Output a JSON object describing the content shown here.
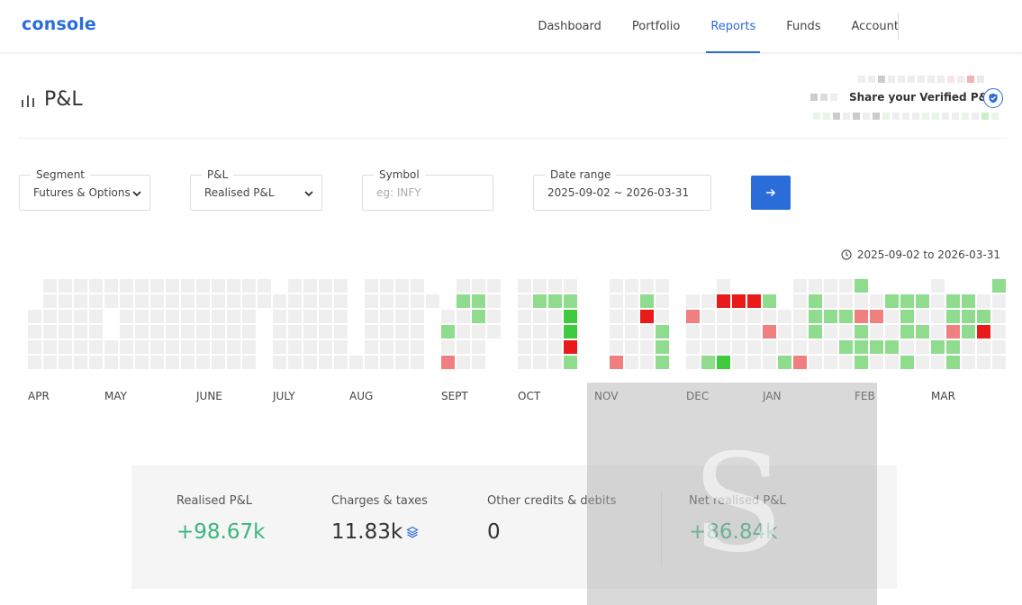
{
  "app": {
    "logo": "console"
  },
  "nav": {
    "items": [
      {
        "label": "Dashboard",
        "active": false
      },
      {
        "label": "Portfolio",
        "active": false
      },
      {
        "label": "Reports",
        "active": true
      },
      {
        "label": "Funds",
        "active": false
      },
      {
        "label": "Account",
        "active": false
      }
    ]
  },
  "page": {
    "title": "P&L",
    "title_icon": "bar-chart-icon"
  },
  "share": {
    "label": "Share your Verified P&L",
    "icon": "verified-shield-icon"
  },
  "filters": {
    "segment": {
      "label": "Segment",
      "value": "Futures & Options"
    },
    "pnl": {
      "label": "P&L",
      "value": "Realised P&L"
    },
    "symbol": {
      "label": "Symbol",
      "placeholder": "eg: INFY",
      "value": ""
    },
    "date_range": {
      "label": "Date range",
      "value": "2025-09-02 ~ 2026-03-31"
    },
    "submit_icon": "arrow-right-icon"
  },
  "range_caption": {
    "icon": "clock-icon",
    "text": "2025-09-02 to 2026-03-31"
  },
  "colors": {
    "accent": "#2a6dd8",
    "empty": "#efefef",
    "profit_light": "#8fdc8f",
    "profit_strong": "#3fca3f",
    "loss_light": "#f07f7f",
    "loss_strong": "#e81a1a"
  },
  "heatmap": {
    "months": [
      "APR",
      "MAY",
      "JUNE",
      "JULY",
      "AUG",
      "SEPT",
      "OCT",
      "NOV",
      "DEC",
      "JAN",
      "FEB",
      "MAR"
    ],
    "legend_states": [
      "no-trade",
      "profit",
      "strong-profit",
      "loss",
      "strong-loss"
    ]
  },
  "summary": {
    "realised": {
      "label": "Realised P&L",
      "value": "+98.67k"
    },
    "charges": {
      "label": "Charges & taxes",
      "value": "11.83k",
      "icon": "layers-icon"
    },
    "other": {
      "label": "Other credits & debits",
      "value": "0"
    },
    "net": {
      "label": "Net realised P&L",
      "value": "+86.84k"
    }
  },
  "watermark": {
    "text": "S"
  }
}
